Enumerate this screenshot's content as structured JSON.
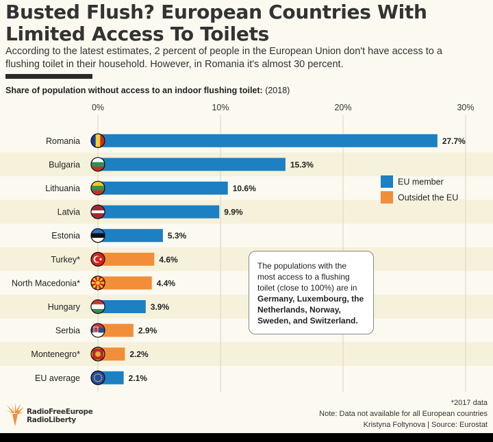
{
  "title": "Busted Flush? European Countries With Limited Access To Toilets",
  "subtitle": "According to the latest estimates, 2 percent of people in the European Union don't have access to a flushing toilet in their household. However, in Romania it's almost 30 percent.",
  "chart_label_bold": "Share of population without access to an indoor flushing toilet:",
  "chart_label_year": "(2018)",
  "note": {
    "text": "The populations with the most access to a flushing toilet (close to 100%) are in ",
    "countries": "Germany, Luxembourg, the Netherlands, Norway, Sweden, and Switzerland."
  },
  "logo": {
    "line1": "RadioFreeEurope",
    "line2": "RadioLiberty"
  },
  "footer": {
    "line1": "*2017 data",
    "line2": "Note: Data not available for all European countries",
    "line3": "Kristyna Foltynova | Source: Eurostat"
  },
  "colors": {
    "eu": "#1c80c3",
    "non_eu": "#f28e3a",
    "background": "#fbf9f0",
    "band": "#f6f1da"
  },
  "chart_data": {
    "type": "bar",
    "orientation": "horizontal",
    "xlim": [
      0,
      30
    ],
    "xticks": [
      "0%",
      "10%",
      "20%",
      "30%"
    ],
    "grid": true,
    "legend": [
      {
        "label": "EU member",
        "color": "#1c80c3"
      },
      {
        "label": "Outsidet the EU",
        "color": "#f28e3a"
      }
    ],
    "legend_position": "right",
    "bars": [
      {
        "country": "Romania",
        "value": 27.7,
        "label": "27.7%",
        "group": "eu",
        "flag": "romania-flag"
      },
      {
        "country": "Bulgaria",
        "value": 15.3,
        "label": "15.3%",
        "group": "eu",
        "flag": "bulgaria-flag"
      },
      {
        "country": "Lithuania",
        "value": 10.6,
        "label": "10.6%",
        "group": "eu",
        "flag": "lithuania-flag"
      },
      {
        "country": "Latvia",
        "value": 9.9,
        "label": "9.9%",
        "group": "eu",
        "flag": "latvia-flag"
      },
      {
        "country": "Estonia",
        "value": 5.3,
        "label": "5.3%",
        "group": "eu",
        "flag": "estonia-flag"
      },
      {
        "country": "Turkey*",
        "value": 4.6,
        "label": "4.6%",
        "group": "non_eu",
        "flag": "turkey-flag"
      },
      {
        "country": "North Macedonia*",
        "value": 4.4,
        "label": "4.4%",
        "group": "non_eu",
        "flag": "north-macedonia-flag"
      },
      {
        "country": "Hungary",
        "value": 3.9,
        "label": "3.9%",
        "group": "eu",
        "flag": "hungary-flag"
      },
      {
        "country": "Serbia",
        "value": 2.9,
        "label": "2.9%",
        "group": "non_eu",
        "flag": "serbia-flag"
      },
      {
        "country": "Montenegro*",
        "value": 2.2,
        "label": "2.2%",
        "group": "non_eu",
        "flag": "montenegro-flag"
      },
      {
        "country": "EU average",
        "value": 2.1,
        "label": "2.1%",
        "group": "eu",
        "flag": "eu-flag"
      }
    ]
  }
}
